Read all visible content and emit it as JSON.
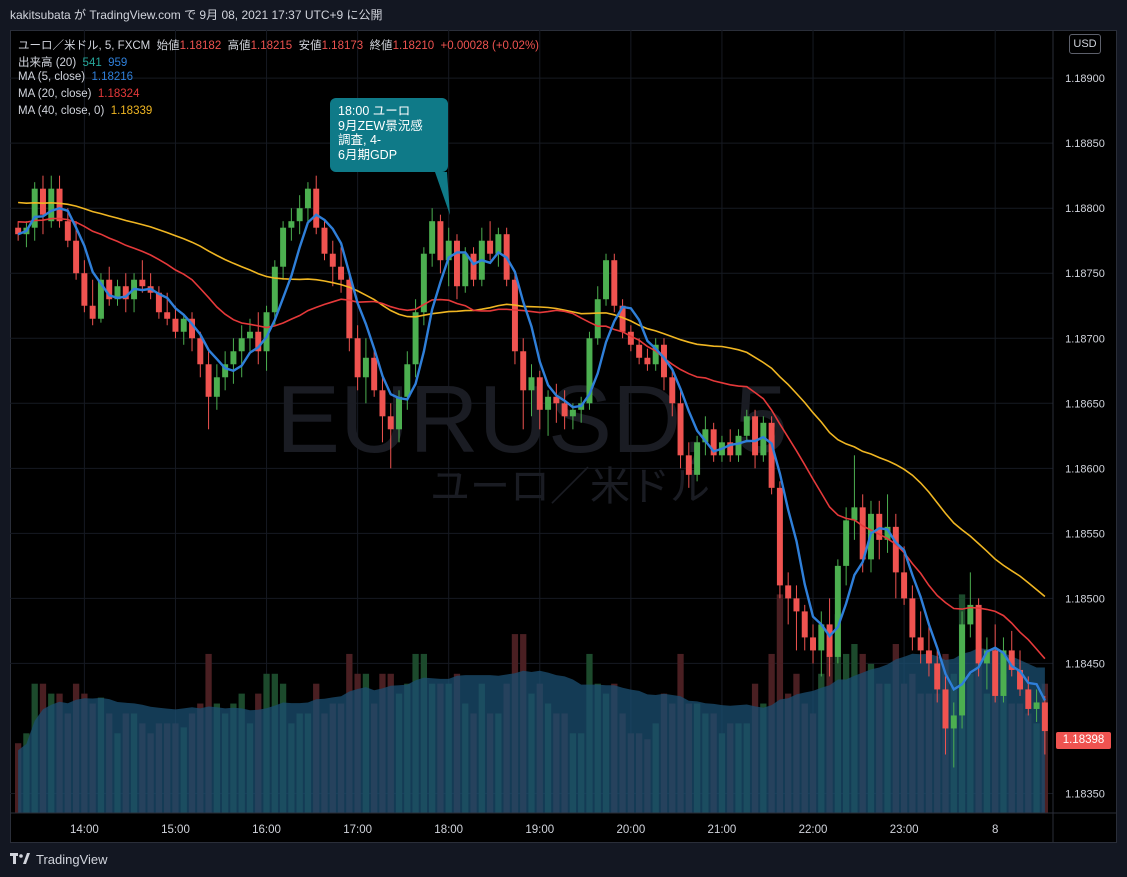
{
  "header": {
    "user": "kakitsubata",
    "by": " が ",
    "site": "TradingView.com",
    "date": " で 9月 08, 2021 17:37 UTC+9 に公開"
  },
  "legend": {
    "symbol": "ユーロ／米ドル, 5, FXCM",
    "open_label": "始値",
    "open": "1.18182",
    "high_label": "高値",
    "high": "1.18215",
    "low_label": "安値",
    "low": "1.18173",
    "close_label": "終値",
    "close": "1.18210",
    "change": "+0.00028 (+0.02%)",
    "volume_label": "出来高 (20)",
    "volume_up": "541",
    "volume_ma": "959",
    "ma5_label": "MA (5, close)",
    "ma5_value": "1.18216",
    "ma20_label": "MA (20, close)",
    "ma20_value": "1.18324",
    "ma40_label": "MA (40, close, 0)",
    "ma40_value": "1.18339"
  },
  "currency_badge": "USD",
  "watermark": {
    "symbol": "EURUSD, 5",
    "name": "ユーロ／米ドル"
  },
  "callout": {
    "text": "18:00 ユーロ\n9月ZEW景況感\n調査, 4-\n6月期GDP"
  },
  "last_price": "1.18398",
  "footer": {
    "brand": "TradingView"
  },
  "colors": {
    "up": "#4caf50",
    "down": "#ef5350",
    "ma5": "#2f7fd9",
    "ma20": "#e5393a",
    "ma40": "#f0b622",
    "volume_up": "#1c4a2c",
    "volume_down": "#4a1f22",
    "volume_ma_area": "#1b4f72",
    "callout": "#0f7a88",
    "background": "#000000"
  },
  "chart_data": {
    "type": "candlestick",
    "y_ticks": [
      "1.18900",
      "1.18850",
      "1.18800",
      "1.18750",
      "1.18700",
      "1.18650",
      "1.18600",
      "1.18550",
      "1.18500",
      "1.18450",
      "1.18350"
    ],
    "ylim": [
      1.18335,
      1.18937
    ],
    "x_ticks": [
      "14:00",
      "15:00",
      "16:00",
      "17:00",
      "18:00",
      "19:00",
      "20:00",
      "21:00",
      "22:00",
      "23:00",
      "8"
    ],
    "candles": [
      [
        1.18785,
        1.1879,
        1.18775,
        1.1878
      ],
      [
        1.1878,
        1.1879,
        1.1877,
        1.18785
      ],
      [
        1.18785,
        1.1882,
        1.18775,
        1.18815
      ],
      [
        1.18815,
        1.18825,
        1.1878,
        1.18795
      ],
      [
        1.1879,
        1.18825,
        1.18785,
        1.18815
      ],
      [
        1.18815,
        1.18825,
        1.18785,
        1.1879
      ],
      [
        1.1879,
        1.188,
        1.1877,
        1.18775
      ],
      [
        1.18775,
        1.1879,
        1.18745,
        1.1875
      ],
      [
        1.1875,
        1.1876,
        1.1872,
        1.18725
      ],
      [
        1.18725,
        1.18745,
        1.1871,
        1.18715
      ],
      [
        1.18715,
        1.1875,
        1.18712,
        1.18745
      ],
      [
        1.18745,
        1.18755,
        1.18725,
        1.1873
      ],
      [
        1.1873,
        1.18745,
        1.18725,
        1.1874
      ],
      [
        1.1874,
        1.1875,
        1.1872,
        1.1873
      ],
      [
        1.1873,
        1.1875,
        1.1872,
        1.18745
      ],
      [
        1.18745,
        1.1876,
        1.18735,
        1.1874
      ],
      [
        1.1874,
        1.1875,
        1.1873,
        1.18735
      ],
      [
        1.18735,
        1.1874,
        1.18715,
        1.1872
      ],
      [
        1.1872,
        1.18735,
        1.1871,
        1.18715
      ],
      [
        1.18715,
        1.18725,
        1.187,
        1.18705
      ],
      [
        1.18705,
        1.18718,
        1.18695,
        1.18715
      ],
      [
        1.18715,
        1.1872,
        1.1869,
        1.187
      ],
      [
        1.187,
        1.18705,
        1.1867,
        1.1868
      ],
      [
        1.1868,
        1.1869,
        1.1863,
        1.18655
      ],
      [
        1.18655,
        1.1868,
        1.18645,
        1.1867
      ],
      [
        1.1867,
        1.1869,
        1.1866,
        1.1868
      ],
      [
        1.1868,
        1.187,
        1.18665,
        1.1869
      ],
      [
        1.1869,
        1.1871,
        1.1867,
        1.187
      ],
      [
        1.187,
        1.18715,
        1.1869,
        1.18705
      ],
      [
        1.18705,
        1.1872,
        1.1868,
        1.1869
      ],
      [
        1.1869,
        1.18725,
        1.18675,
        1.1872
      ],
      [
        1.1872,
        1.1876,
        1.1871,
        1.18755
      ],
      [
        1.18755,
        1.1879,
        1.18745,
        1.18785
      ],
      [
        1.18785,
        1.188,
        1.18775,
        1.1879
      ],
      [
        1.1879,
        1.1881,
        1.1878,
        1.188
      ],
      [
        1.188,
        1.1882,
        1.1879,
        1.18815
      ],
      [
        1.18815,
        1.18825,
        1.1878,
        1.18785
      ],
      [
        1.18785,
        1.1879,
        1.1876,
        1.18765
      ],
      [
        1.18765,
        1.18775,
        1.1874,
        1.18755
      ],
      [
        1.18755,
        1.1877,
        1.18735,
        1.18745
      ],
      [
        1.18745,
        1.1875,
        1.1869,
        1.187
      ],
      [
        1.187,
        1.1871,
        1.1866,
        1.1867
      ],
      [
        1.1867,
        1.187,
        1.1865,
        1.18685
      ],
      [
        1.18685,
        1.1869,
        1.18655,
        1.1866
      ],
      [
        1.1866,
        1.1867,
        1.1862,
        1.1864
      ],
      [
        1.1864,
        1.1865,
        1.186,
        1.1863
      ],
      [
        1.1863,
        1.1866,
        1.1862,
        1.18655
      ],
      [
        1.18655,
        1.1869,
        1.18645,
        1.1868
      ],
      [
        1.1868,
        1.1873,
        1.1867,
        1.1872
      ],
      [
        1.1872,
        1.1877,
        1.1871,
        1.18765
      ],
      [
        1.18765,
        1.188,
        1.18755,
        1.1879
      ],
      [
        1.1879,
        1.18795,
        1.1875,
        1.1876
      ],
      [
        1.1876,
        1.18785,
        1.1874,
        1.18775
      ],
      [
        1.18775,
        1.1878,
        1.1873,
        1.1874
      ],
      [
        1.1874,
        1.1877,
        1.18735,
        1.18765
      ],
      [
        1.18765,
        1.1877,
        1.1874,
        1.18745
      ],
      [
        1.18745,
        1.18785,
        1.1874,
        1.18775
      ],
      [
        1.18775,
        1.1879,
        1.1876,
        1.18765
      ],
      [
        1.18765,
        1.18785,
        1.18755,
        1.1878
      ],
      [
        1.1878,
        1.18785,
        1.1874,
        1.18745
      ],
      [
        1.18745,
        1.1875,
        1.1868,
        1.1869
      ],
      [
        1.1869,
        1.187,
        1.1863,
        1.1866
      ],
      [
        1.1866,
        1.1868,
        1.1864,
        1.1867
      ],
      [
        1.1867,
        1.18675,
        1.1863,
        1.18645
      ],
      [
        1.18645,
        1.1866,
        1.18625,
        1.18655
      ],
      [
        1.18655,
        1.18665,
        1.18635,
        1.1865
      ],
      [
        1.1865,
        1.1866,
        1.1863,
        1.1864
      ],
      [
        1.1864,
        1.1865,
        1.1863,
        1.18645
      ],
      [
        1.18645,
        1.18655,
        1.18635,
        1.1865
      ],
      [
        1.1865,
        1.18705,
        1.18645,
        1.187
      ],
      [
        1.187,
        1.1874,
        1.18695,
        1.1873
      ],
      [
        1.1873,
        1.18765,
        1.18725,
        1.1876
      ],
      [
        1.1876,
        1.18765,
        1.1872,
        1.18725
      ],
      [
        1.18725,
        1.1873,
        1.187,
        1.18705
      ],
      [
        1.18705,
        1.1871,
        1.1869,
        1.18695
      ],
      [
        1.18695,
        1.187,
        1.1868,
        1.18685
      ],
      [
        1.18685,
        1.18692,
        1.18675,
        1.1868
      ],
      [
        1.1868,
        1.187,
        1.18675,
        1.18695
      ],
      [
        1.18695,
        1.187,
        1.1866,
        1.1867
      ],
      [
        1.1867,
        1.18675,
        1.1864,
        1.1865
      ],
      [
        1.1865,
        1.1866,
        1.186,
        1.1861
      ],
      [
        1.1861,
        1.1862,
        1.18585,
        1.18595
      ],
      [
        1.18595,
        1.18625,
        1.1859,
        1.1862
      ],
      [
        1.1862,
        1.1864,
        1.1861,
        1.1863
      ],
      [
        1.1863,
        1.18635,
        1.18605,
        1.1861
      ],
      [
        1.1861,
        1.18625,
        1.18605,
        1.1862
      ],
      [
        1.1862,
        1.1863,
        1.18605,
        1.1861
      ],
      [
        1.1861,
        1.1863,
        1.18605,
        1.18625
      ],
      [
        1.18625,
        1.18645,
        1.1862,
        1.1864
      ],
      [
        1.1864,
        1.18645,
        1.186,
        1.1861
      ],
      [
        1.1861,
        1.1864,
        1.18605,
        1.18635
      ],
      [
        1.18635,
        1.1864,
        1.1858,
        1.18585
      ],
      [
        1.18585,
        1.1859,
        1.185,
        1.1851
      ],
      [
        1.1851,
        1.1852,
        1.1848,
        1.185
      ],
      [
        1.185,
        1.1851,
        1.1846,
        1.1849
      ],
      [
        1.1849,
        1.18495,
        1.1846,
        1.1847
      ],
      [
        1.1847,
        1.1848,
        1.1845,
        1.1846
      ],
      [
        1.1846,
        1.1849,
        1.1844,
        1.1848
      ],
      [
        1.1848,
        1.185,
        1.1844,
        1.18455
      ],
      [
        1.18455,
        1.1853,
        1.1845,
        1.18525
      ],
      [
        1.18525,
        1.1857,
        1.1851,
        1.1856
      ],
      [
        1.1856,
        1.1861,
        1.18545,
        1.1857
      ],
      [
        1.1857,
        1.1858,
        1.1852,
        1.1853
      ],
      [
        1.1853,
        1.18575,
        1.1852,
        1.18565
      ],
      [
        1.18565,
        1.18575,
        1.1853,
        1.18545
      ],
      [
        1.18545,
        1.1858,
        1.18535,
        1.18555
      ],
      [
        1.18555,
        1.18565,
        1.185,
        1.1852
      ],
      [
        1.1852,
        1.1854,
        1.18495,
        1.185
      ],
      [
        1.185,
        1.1851,
        1.1846,
        1.1847
      ],
      [
        1.1847,
        1.1849,
        1.1845,
        1.1846
      ],
      [
        1.1846,
        1.1848,
        1.1844,
        1.1845
      ],
      [
        1.1845,
        1.1846,
        1.1842,
        1.1843
      ],
      [
        1.1843,
        1.1844,
        1.1838,
        1.184
      ],
      [
        1.184,
        1.1842,
        1.1837,
        1.1841
      ],
      [
        1.1841,
        1.1849,
        1.184,
        1.1848
      ],
      [
        1.1848,
        1.1852,
        1.1847,
        1.18495
      ],
      [
        1.18495,
        1.185,
        1.1844,
        1.1845
      ],
      [
        1.1845,
        1.1847,
        1.1843,
        1.1846
      ],
      [
        1.1846,
        1.1848,
        1.1842,
        1.18425
      ],
      [
        1.18425,
        1.1847,
        1.1842,
        1.1846
      ],
      [
        1.1846,
        1.18475,
        1.1844,
        1.18445
      ],
      [
        1.18445,
        1.1846,
        1.18425,
        1.1843
      ],
      [
        1.1843,
        1.1844,
        1.1841,
        1.18415
      ],
      [
        1.18415,
        1.1843,
        1.18405,
        1.1842
      ],
      [
        1.1842,
        1.18425,
        1.1838,
        1.18398
      ]
    ]
  }
}
